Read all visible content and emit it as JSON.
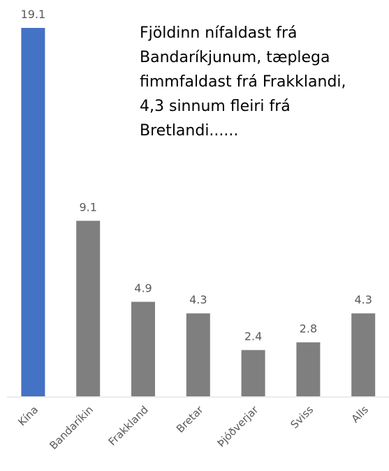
{
  "chart_data": {
    "type": "bar",
    "annotation": [
      "Fjöldinn nífaldast frá",
      "Bandaríkjunum, tæplega",
      "fimmfaldast frá Frakklandi,",
      "4,3 sinnum fleiri frá",
      "Bretlandi......"
    ],
    "categories": [
      "Kína",
      "Bandaríkin",
      "Frakkland",
      "Bretar",
      "Þjóðverjar",
      "Sviss",
      "Alls"
    ],
    "values": [
      19.1,
      9.1,
      4.9,
      4.3,
      2.4,
      2.8,
      4.3
    ],
    "colors": [
      "#4472c4",
      "#7f7f7f",
      "#7f7f7f",
      "#7f7f7f",
      "#7f7f7f",
      "#7f7f7f",
      "#7f7f7f"
    ]
  }
}
